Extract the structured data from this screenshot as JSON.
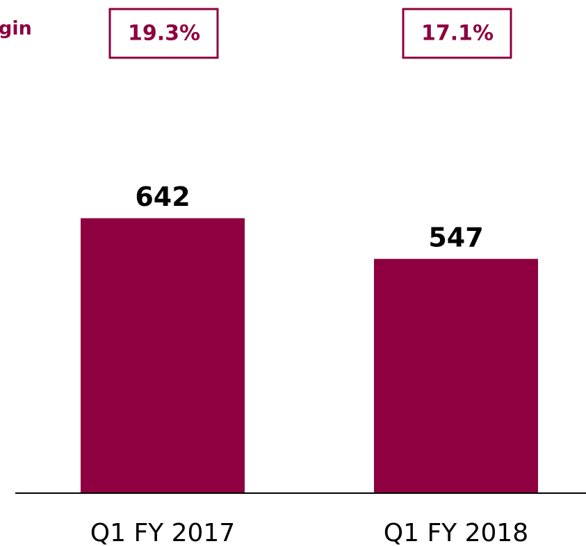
{
  "chart_data": {
    "type": "bar",
    "annotation": "gin",
    "categories": [
      "Q1 FY 2017",
      "Q1 FY 2018"
    ],
    "values": [
      642,
      547
    ],
    "color": "#8e003f",
    "margins": {
      "values": [
        19.3,
        17.1
      ],
      "value_labels": [
        "19.3%",
        "17.1%"
      ]
    },
    "ylim": [
      0,
      700
    ]
  }
}
